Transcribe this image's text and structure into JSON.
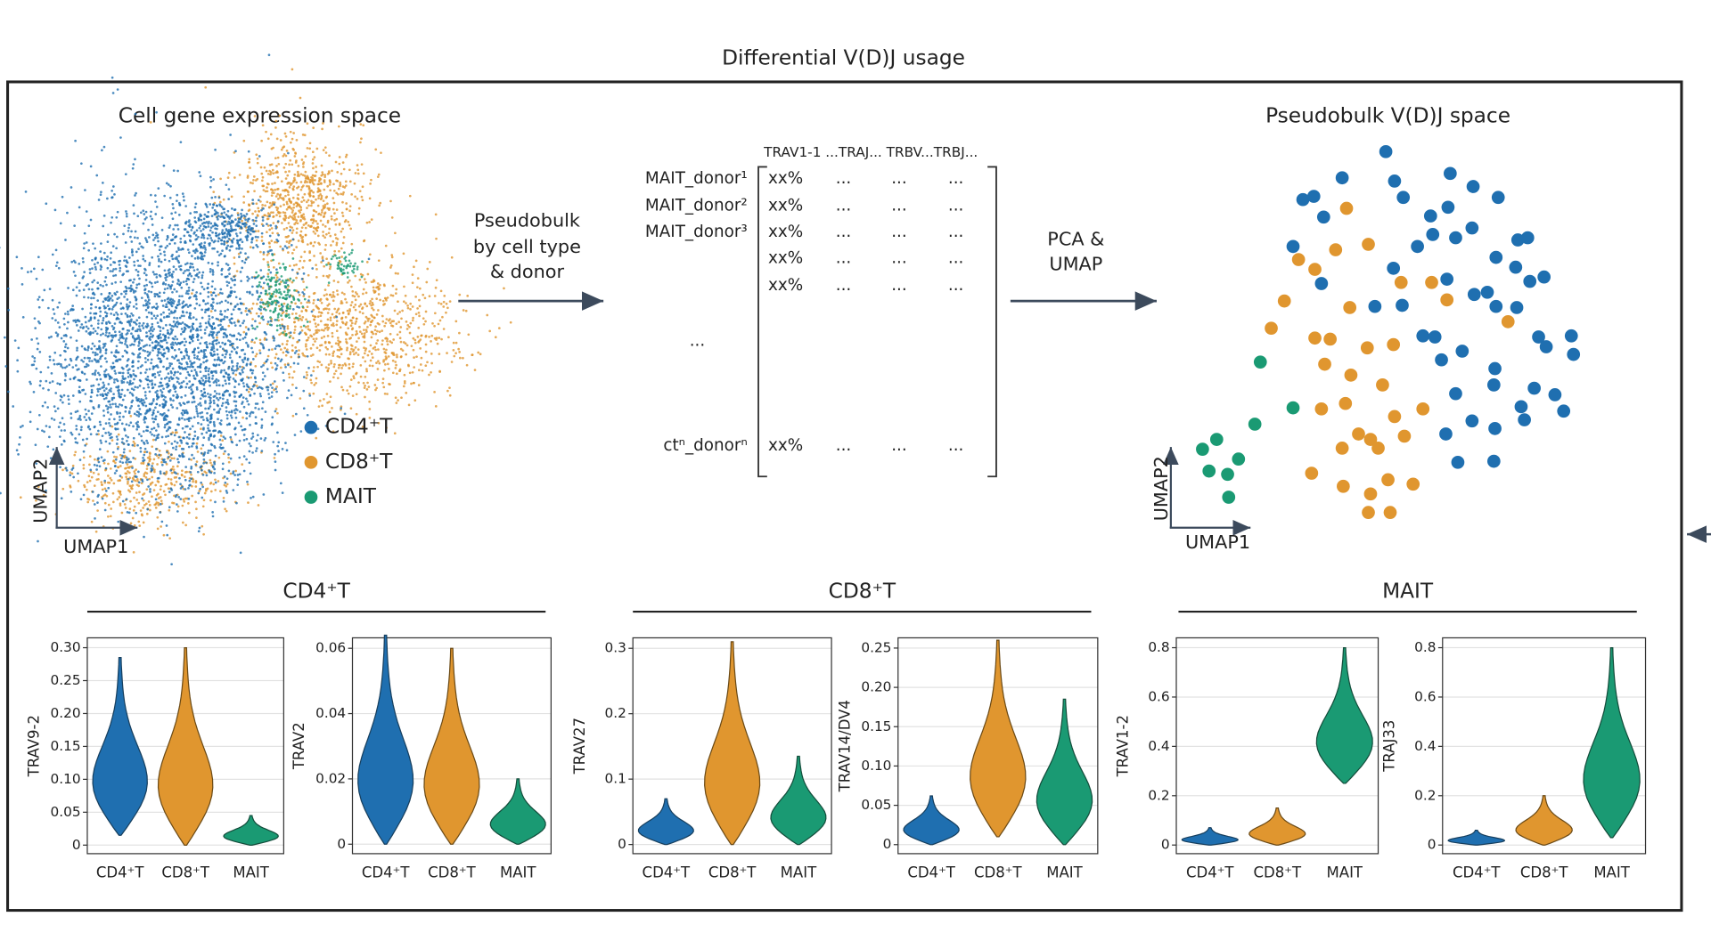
{
  "title": "Differential V(D)J usage",
  "left_panel": {
    "title": "Cell gene expression space",
    "legend": [
      "CD4⁺T",
      "CD8⁺T",
      "MAIT"
    ],
    "x_axis": "UMAP1",
    "y_axis": "UMAP2"
  },
  "arrow1": {
    "label": [
      "Pseudobulk",
      "by cell type",
      "& donor"
    ]
  },
  "matrix": {
    "header": "TRAV1-1 ...TRAJ... TRBV...TRBJ...",
    "rows": [
      {
        "label": "MAIT_donor¹",
        "cells": [
          "xx%",
          "...",
          "...",
          "..."
        ]
      },
      {
        "label": "MAIT_donor²",
        "cells": [
          "xx%",
          "...",
          "...",
          "..."
        ]
      },
      {
        "label": "MAIT_donor³",
        "cells": [
          "xx%",
          "...",
          "...",
          "..."
        ]
      },
      {
        "label": null,
        "cells": [
          "xx%",
          "...",
          "...",
          "..."
        ]
      },
      {
        "label": null,
        "cells": [
          "xx%",
          "...",
          "...",
          "..."
        ]
      },
      {
        "label": "ctⁿ_donorⁿ",
        "cells": [
          "xx%",
          "...",
          "...",
          "..."
        ]
      }
    ],
    "ellipsis": "..."
  },
  "arrow2": {
    "label": [
      "PCA &",
      "UMAP"
    ]
  },
  "right_panel": {
    "title": "Pseudobulk V(D)J space",
    "x_axis": "UMAP1",
    "y_axis": "UMAP2"
  },
  "violin_groups": [
    {
      "title": "CD4⁺T",
      "panels": [
        {
          "ylabel": "TRAV9-2",
          "ylim": [
            -0.013,
            0.315
          ],
          "yticks": [
            0,
            0.05,
            {
              "value": 0.1,
              "label": "0.10"
            },
            0.15,
            {
              "value": 0.2,
              "label": "0.20"
            },
            0.25,
            {
              "value": 0.3,
              "label": "0.30"
            }
          ],
          "categories": [
            "CD4⁺T",
            "CD8⁺T",
            "MAIT"
          ],
          "violins": [
            {
              "min": 0.015,
              "max": 0.285
            },
            {
              "min": 0,
              "max": 0.3
            },
            {
              "min": 0,
              "max": 0.045
            }
          ]
        },
        {
          "ylabel": "TRAV2",
          "ylim": [
            -0.0029,
            0.0632
          ],
          "yticks": [
            0,
            0.02,
            0.04,
            0.06
          ],
          "categories": [
            "CD4⁺T",
            "CD8⁺T",
            "MAIT"
          ],
          "violins": [
            {
              "min": 0,
              "max": 0.064
            },
            {
              "min": 0,
              "max": 0.06
            },
            {
              "min": 0,
              "max": 0.02
            }
          ]
        }
      ]
    },
    {
      "title": "CD8⁺T",
      "panels": [
        {
          "ylabel": "TRAV27",
          "ylim": [
            -0.014,
            0.316
          ],
          "yticks": [
            0,
            0.1,
            0.2,
            0.3
          ],
          "categories": [
            "CD4⁺T",
            "CD8⁺T",
            "MAIT"
          ],
          "violins": [
            {
              "min": 0,
              "max": 0.07
            },
            {
              "min": 0,
              "max": 0.31
            },
            {
              "min": 0,
              "max": 0.135
            }
          ]
        },
        {
          "ylabel": "TRAV14/DV4",
          "ylim": [
            -0.0115,
            0.263
          ],
          "yticks": [
            0,
            0.05,
            {
              "value": 0.1,
              "label": "0.10"
            },
            0.15,
            {
              "value": 0.2,
              "label": "0.20"
            },
            0.25
          ],
          "categories": [
            "CD4⁺T",
            "CD8⁺T",
            "MAIT"
          ],
          "violins": [
            {
              "min": 0,
              "max": 0.062
            },
            {
              "min": 0.01,
              "max": 0.26
            },
            {
              "min": 0,
              "max": 0.185
            }
          ]
        }
      ]
    },
    {
      "title": "MAIT",
      "panels": [
        {
          "ylabel": "TRAV1-2",
          "ylim": [
            -0.035,
            0.84
          ],
          "yticks": [
            0,
            0.2,
            0.4,
            0.6,
            0.8
          ],
          "categories": [
            "CD4⁺T",
            "CD8⁺T",
            "MAIT"
          ],
          "violins": [
            {
              "min": 0,
              "max": 0.07
            },
            {
              "min": 0,
              "max": 0.15
            },
            {
              "min": 0.25,
              "max": 0.8
            }
          ]
        },
        {
          "ylabel": "TRAJ33",
          "ylim": [
            -0.035,
            0.84
          ],
          "yticks": [
            0,
            0.2,
            0.4,
            0.6,
            0.8
          ],
          "categories": [
            "CD4⁺T",
            "CD8⁺T",
            "MAIT"
          ],
          "violins": [
            {
              "min": 0,
              "max": 0.06
            },
            {
              "min": 0,
              "max": 0.2
            },
            {
              "min": 0.03,
              "max": 0.8
            }
          ]
        }
      ]
    }
  ]
}
